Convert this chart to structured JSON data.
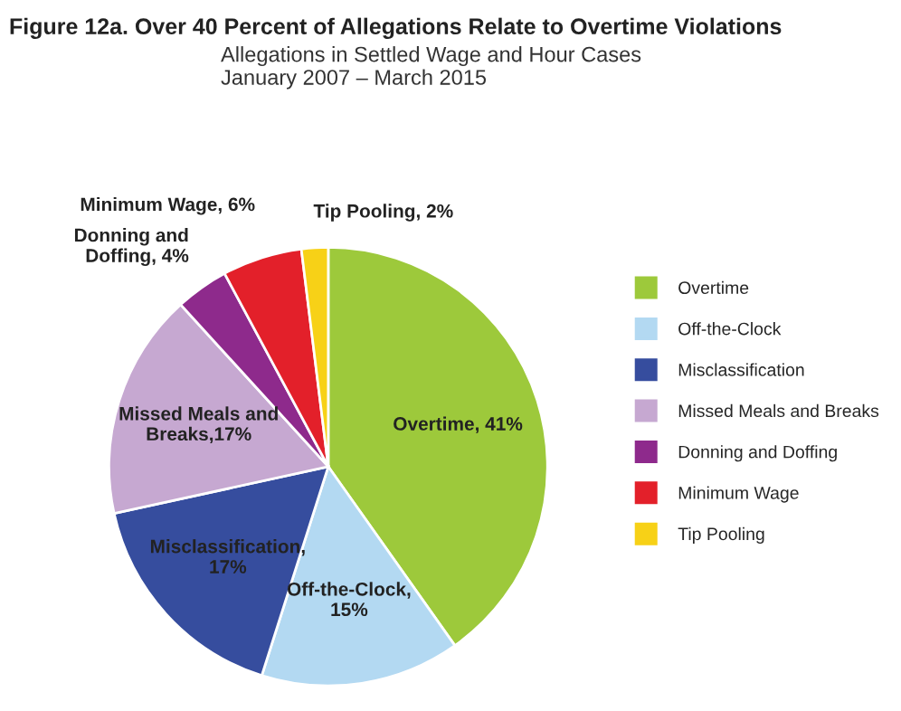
{
  "chart_data": {
    "type": "pie",
    "title": "Figure 12a. Over 40 Percent of Allegations Relate to Overtime Violations",
    "subtitle": "Allegations in Settled Wage and Hour Cases\nJanuary 2007 – March 2015",
    "categories": [
      "Overtime",
      "Off-the-Clock",
      "Misclassification",
      "Missed Meals and Breaks",
      "Donning and Doffing",
      "Minimum Wage",
      "Tip Pooling"
    ],
    "values": [
      41,
      15,
      17,
      17,
      4,
      6,
      2
    ],
    "colors": [
      "#9dc93b",
      "#b3d9f2",
      "#364d9e",
      "#c6a8d1",
      "#8e2a8c",
      "#e3202a",
      "#f7d117"
    ],
    "value_labels": [
      "Overtime, 41%",
      "Off-the-Clock,\n15%",
      "Misclassification,\n17%",
      "Missed Meals and\nBreaks,17%",
      "Donning and\nDoffing, 4%",
      "Minimum Wage, 6%",
      "Tip Pooling, 2%"
    ],
    "legend": "right"
  }
}
